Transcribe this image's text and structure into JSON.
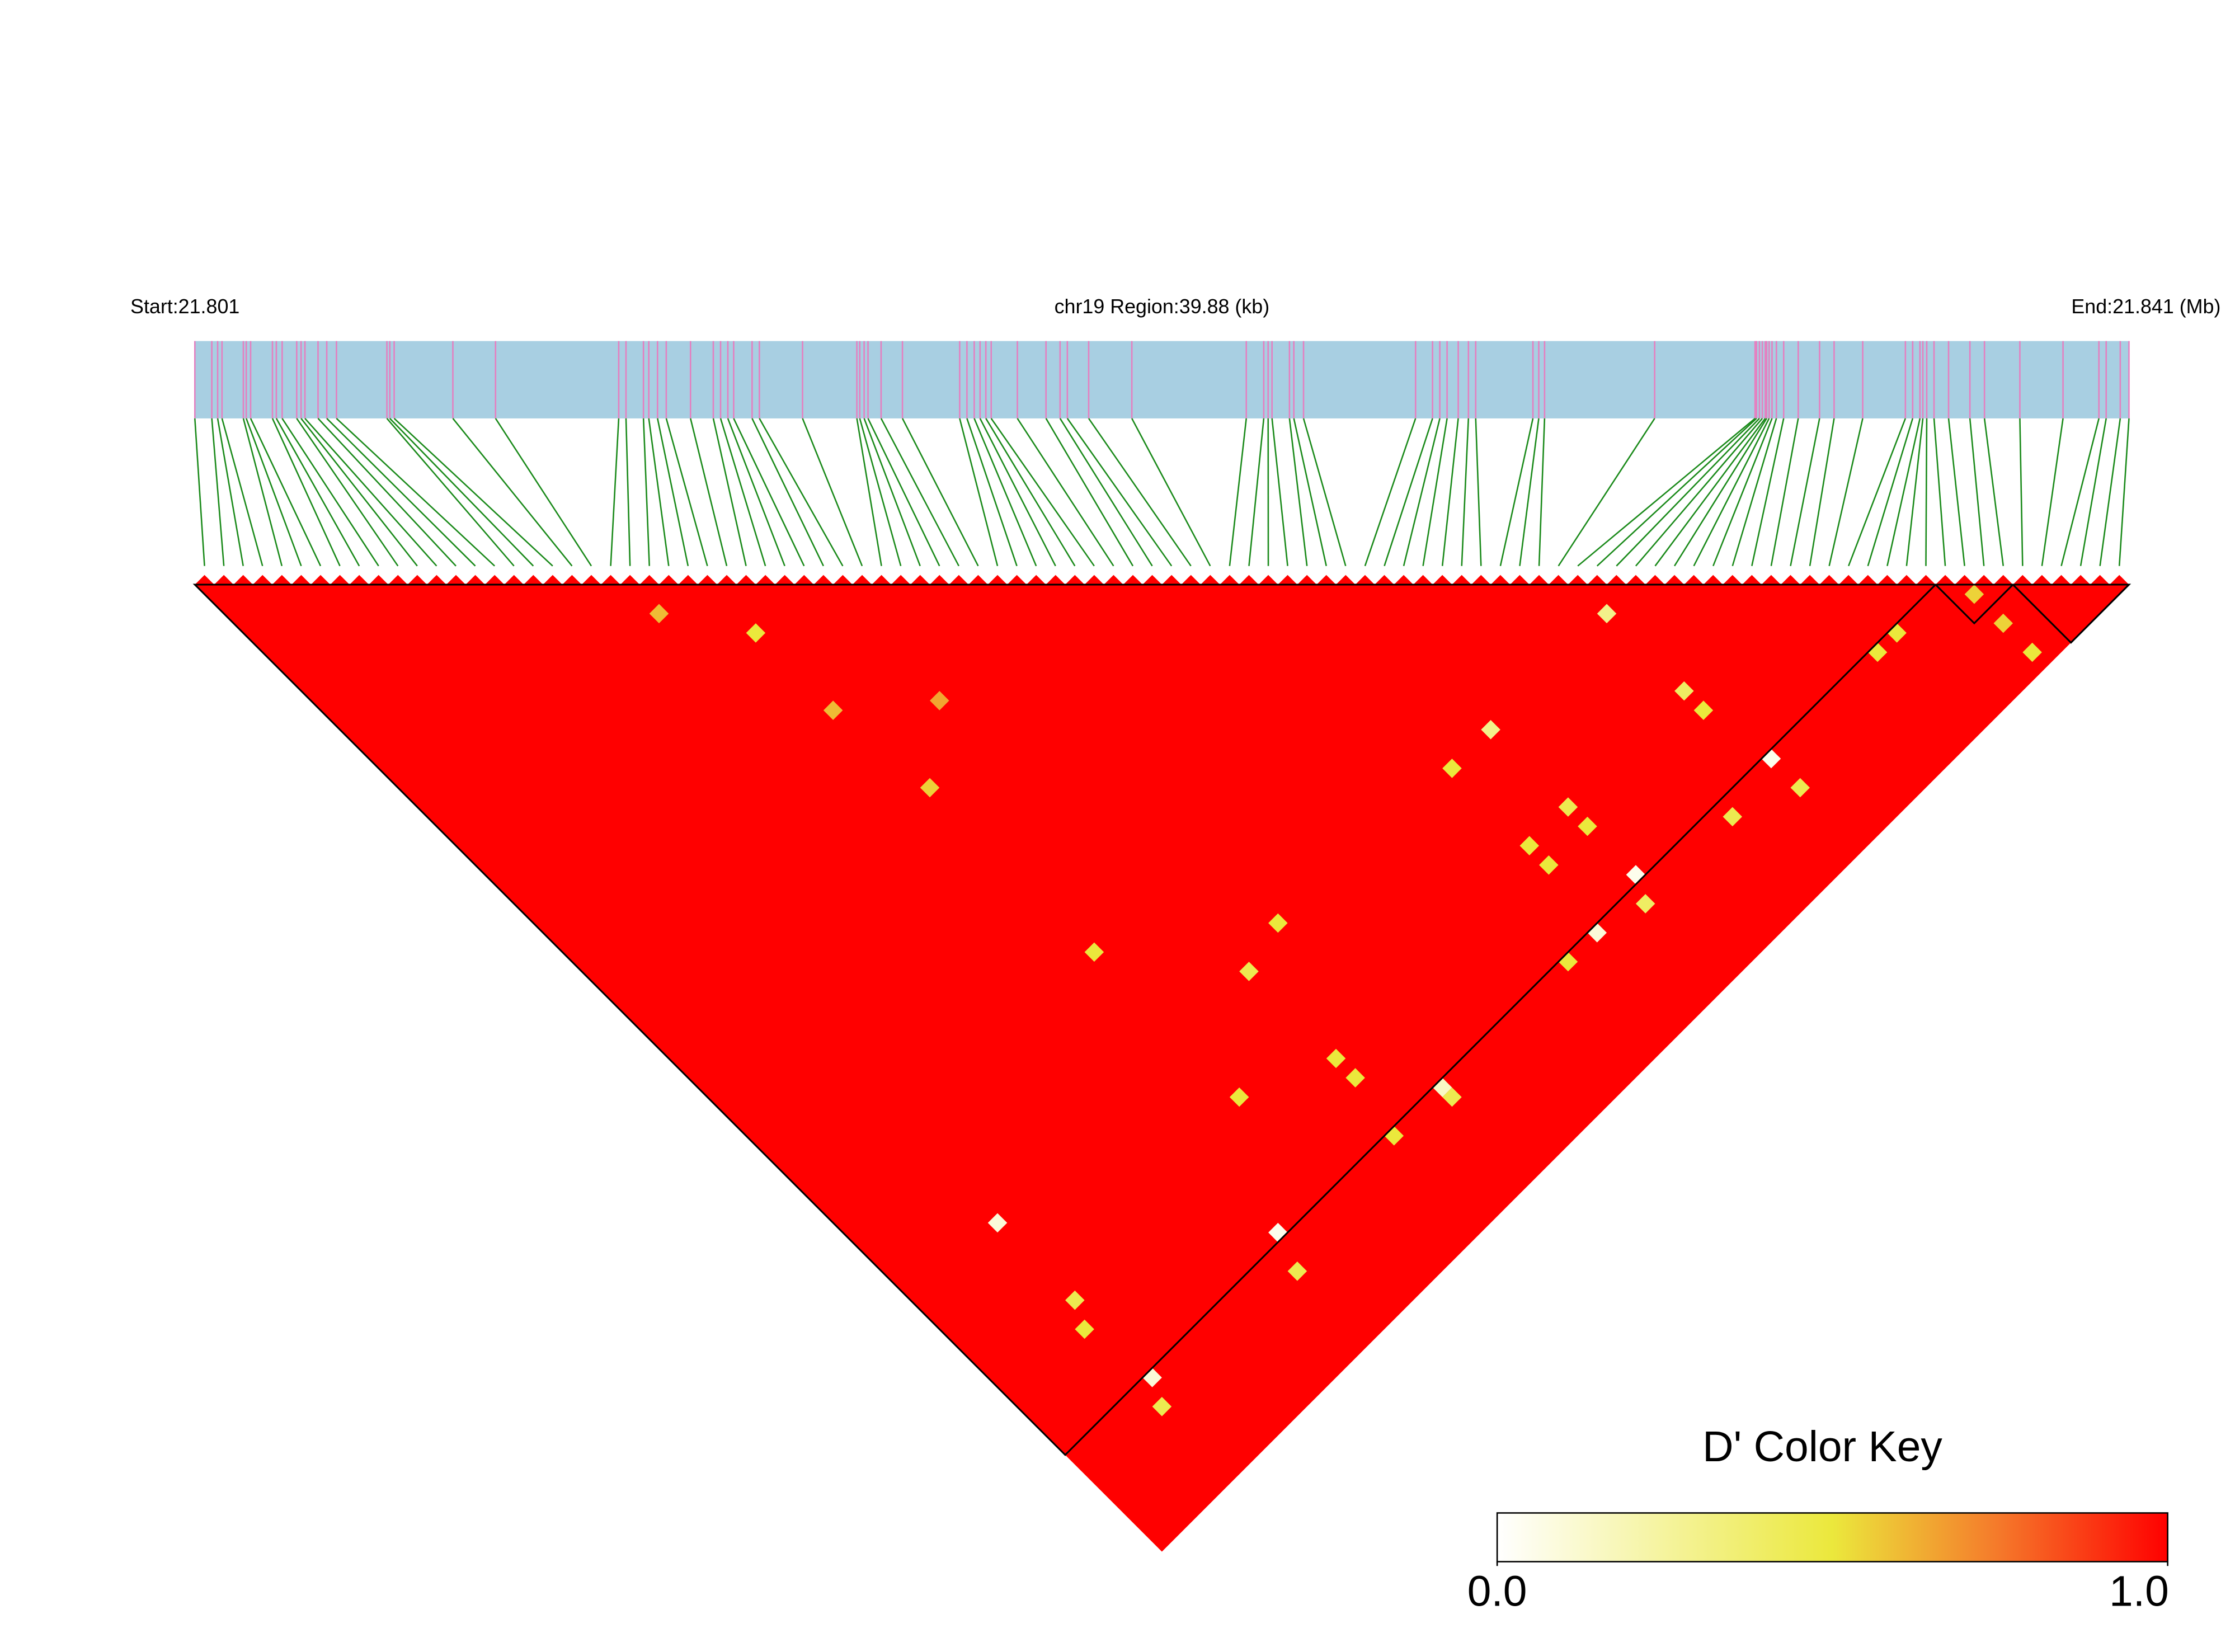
{
  "chart_data": {
    "type": "ld_heatmap",
    "start_label": "Start:21.801",
    "region_label": "chr19 Region:39.88 (kb)",
    "end_label": "End:21.841 (Mb)",
    "xlim": [
      0,
      39.88
    ],
    "snp_positions": [
      0,
      0.35,
      0.47,
      0.56,
      1.0,
      1.06,
      1.15,
      1.6,
      1.68,
      1.8,
      2.1,
      2.19,
      2.27,
      2.54,
      2.72,
      2.92,
      3.96,
      4.02,
      4.11,
      5.32,
      6.2,
      8.74,
      8.89,
      9.25,
      9.36,
      9.54,
      9.72,
      10.22,
      10.69,
      10.84,
      10.99,
      11.11,
      11.49,
      11.64,
      12.53,
      13.65,
      13.71,
      13.8,
      13.88,
      14.15,
      14.59,
      15.77,
      15.92,
      16.07,
      16.19,
      16.31,
      16.42,
      16.96,
      17.55,
      17.84,
      17.99,
      18.43,
      19.32,
      21.68,
      22.04,
      22.13,
      22.21,
      22.57,
      22.66,
      22.86,
      25.17,
      25.52,
      25.67,
      25.82,
      26.05,
      26.26,
      26.41,
      27.59,
      27.71,
      27.83,
      30.1,
      32.17,
      32.2,
      32.26,
      32.32,
      32.38,
      32.41,
      32.46,
      32.52,
      32.61,
      32.76,
      33.06,
      33.5,
      33.8,
      34.39,
      35.27,
      35.42,
      35.57,
      35.63,
      35.71,
      35.86,
      36.16,
      36.6,
      36.9,
      37.63,
      38.52,
      39.26,
      39.41,
      39.7,
      39.88
    ],
    "fill_value": 1,
    "cells": [
      {
        "snps": [
          71,
          74
        ],
        "dprime": 0.3
      },
      {
        "snps": [
          59,
          74
        ],
        "dprime": 0.3
      },
      {
        "snps": [
          55,
          74
        ],
        "dprime": 0.5
      },
      {
        "snps": [
          54,
          90
        ],
        "dprime": 0.1
      },
      {
        "snps": [
          58,
          91
        ],
        "dprime": 0.4
      },
      {
        "snps": [
          72,
          90
        ],
        "dprime": 0.05
      },
      {
        "snps": [
          72,
          93
        ],
        "dprime": 0.45
      },
      {
        "snps": [
          59,
          89
        ],
        "dprime": 0.05
      },
      {
        "snps": [
          38,
          90
        ],
        "dprime": 0.15
      },
      {
        "snps": [
          38,
          91
        ],
        "dprime": 0.45
      },
      {
        "snps": [
          33,
          90
        ],
        "dprime": 0.5
      },
      {
        "snps": [
          22,
          89
        ],
        "dprime": 0.05
      },
      {
        "snps": [
          21,
          92
        ],
        "dprime": 0.45
      },
      {
        "snps": [
          8,
          74
        ],
        "dprime": 0.1
      },
      {
        "snps": [
          8,
          90
        ],
        "dprime": 0.1
      },
      {
        "snps": [
          7,
          92
        ],
        "dprime": 0.45
      },
      {
        "snps": [
          85,
          90
        ],
        "dprime": 0.5
      },
      {
        "snps": [
          83,
          90
        ],
        "dprime": 0.5
      },
      {
        "snps": [
          91,
          92
        ],
        "dprime": 0.55
      },
      {
        "snps": [
          91,
          98
        ],
        "dprime": 0.5
      },
      {
        "snps": [
          91,
          95
        ],
        "dprime": 0.55
      },
      {
        "snps": [
          71,
          82
        ],
        "dprime": 0.4
      },
      {
        "snps": [
          71,
          84
        ],
        "dprime": 0.5
      },
      {
        "snps": [
          59,
          82
        ],
        "dprime": 0.45
      },
      {
        "snps": [
          59,
          84
        ],
        "dprime": 0.5
      },
      {
        "snps": [
          55,
          82
        ],
        "dprime": 0.5
      },
      {
        "snps": [
          55,
          84
        ],
        "dprime": 0.5
      },
      {
        "snps": [
          51,
          90
        ],
        "dprime": 0.5
      },
      {
        "snps": [
          34,
          83
        ],
        "dprime": 0.5
      },
      {
        "snps": [
          34,
          85
        ],
        "dprime": 0.5
      },
      {
        "snps": [
          27,
          80
        ],
        "dprime": 0.5
      },
      {
        "snps": [
          34,
          74
        ],
        "dprime": 0.45
      },
      {
        "snps": [
          8,
          82
        ],
        "dprime": 0.45
      },
      {
        "snps": [
          7,
          84
        ],
        "dprime": 0.5
      },
      {
        "snps": [
          38,
          73
        ],
        "dprime": 0.5
      },
      {
        "snps": [
          27,
          65
        ],
        "dprime": 0.5
      },
      {
        "snps": [
          26,
          39
        ],
        "dprime": 0.6
      },
      {
        "snps": [
          22,
          25
        ],
        "dprime": 0.6
      },
      {
        "snps": [
          26,
          31
        ],
        "dprime": 0.5
      },
      {
        "snps": [
          27,
          48
        ],
        "dprime": 0.55
      },
      {
        "snps": [
          32,
          44
        ],
        "dprime": 0.65
      },
      {
        "snps": [
          67,
          91
        ],
        "dprime": 0.45
      }
    ],
    "blocks": [
      [
        0,
        89
      ],
      [
        90,
        93
      ],
      [
        94,
        99
      ]
    ],
    "colorscale": [
      [
        0,
        "#ffffff"
      ],
      [
        0.5,
        "#ebe83c"
      ],
      [
        0.75,
        "#f5782a"
      ],
      [
        1,
        "#ff0000"
      ]
    ],
    "bar_color": "#a8cfe2",
    "snp_line_color": "#e57fc0",
    "link_color": "#1a8a1a",
    "colorbar": {
      "title": "D' Color Key",
      "lim": [
        0,
        1
      ],
      "ticks": [
        {
          "value": 0,
          "label": "0.0"
        },
        {
          "value": 1,
          "label": "1.0"
        }
      ]
    }
  }
}
